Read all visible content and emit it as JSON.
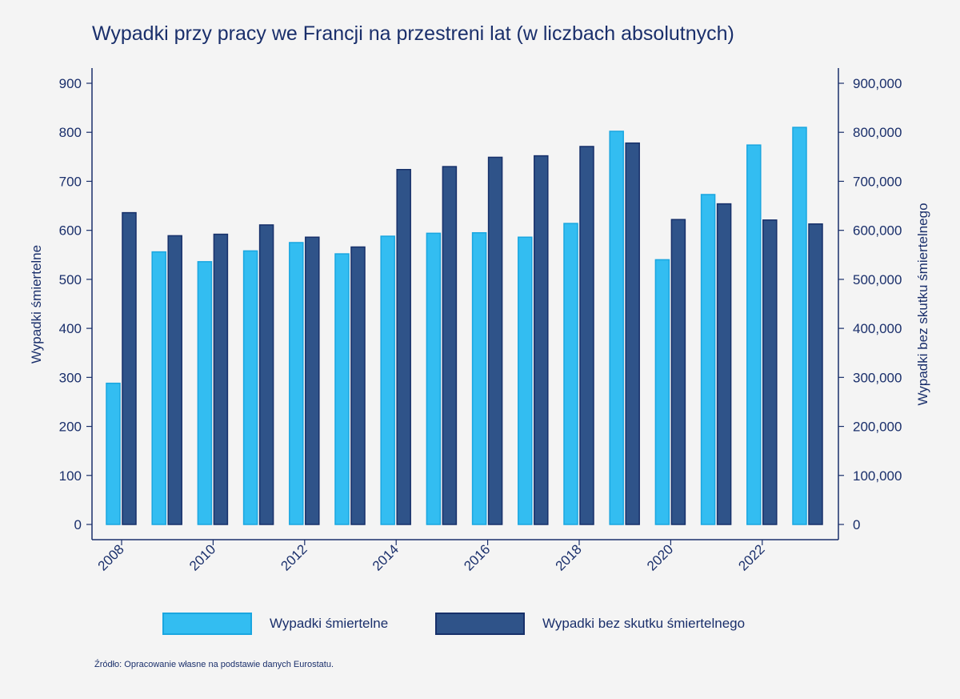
{
  "colors": {
    "fatal": "#33bdf1",
    "fatal_border": "#1aa6e0",
    "nonfatal": "#2f5389",
    "nonfatal_border": "#17306a",
    "axis": "#1a2f6b",
    "background": "#f4f4f4"
  },
  "chart_data": {
    "type": "bar",
    "title": "Wypadki przy pracy we Francji na przestreni lat (w liczbach absolutnych)",
    "x": [
      2008,
      2009,
      2010,
      2011,
      2012,
      2013,
      2014,
      2015,
      2016,
      2017,
      2018,
      2019,
      2020,
      2021,
      2022,
      2023
    ],
    "x_tick_labels": [
      "2008",
      "2010",
      "2012",
      "2014",
      "2016",
      "2018",
      "2020",
      "2022"
    ],
    "ylabel_left": "Wypadki śmiertelne",
    "ylabel_right": "Wypadki bez skutku śmiertelnego",
    "ylim_left": [
      0,
      900
    ],
    "ylim_right": [
      0,
      900000
    ],
    "yticks_left": [
      "0",
      "100",
      "200",
      "300",
      "400",
      "500",
      "600",
      "700",
      "800",
      "900"
    ],
    "yticks_right": [
      "0",
      "100,000",
      "200,000",
      "300,000",
      "400,000",
      "500,000",
      "600,000",
      "700,000",
      "800,000",
      "900,000"
    ],
    "grid": false,
    "legend_position": "bottom",
    "series": [
      {
        "name": "Wypadki śmiertelne",
        "axis": "left",
        "values": [
          288,
          556,
          536,
          558,
          575,
          552,
          588,
          594,
          595,
          586,
          614,
          802,
          540,
          673,
          774,
          810
        ]
      },
      {
        "name": "Wypadki bez skutku śmiertelnego",
        "axis": "right",
        "values": [
          636000,
          589000,
          592000,
          611000,
          586000,
          566000,
          724000,
          730000,
          749000,
          752000,
          771000,
          778000,
          622000,
          654000,
          621000,
          613000
        ]
      }
    ]
  },
  "source_note": "Źródło: Opracowanie własne na podstawie danych Eurostatu."
}
